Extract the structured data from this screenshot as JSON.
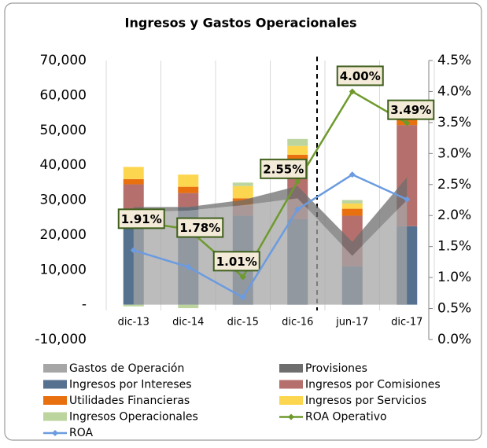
{
  "chart_data": {
    "type": "bar",
    "title": "Ingresos y Gastos Operacionales",
    "categories": [
      "dic-13",
      "dic-14",
      "dic-15",
      "dic-16",
      "jun-17",
      "dic-17"
    ],
    "ylim": [
      -10000,
      70000
    ],
    "yticks": [
      {
        "value": -10000,
        "label": "-10,000"
      },
      {
        "value": 0,
        "label": "-"
      },
      {
        "value": 10000,
        "label": "10,000"
      },
      {
        "value": 20000,
        "label": "20,000"
      },
      {
        "value": 30000,
        "label": "30,000"
      },
      {
        "value": 40000,
        "label": "40,000"
      },
      {
        "value": 50000,
        "label": "50,000"
      },
      {
        "value": 60000,
        "label": "60,000"
      },
      {
        "value": 70000,
        "label": "70,000"
      }
    ],
    "y2lim": [
      0,
      4.5
    ],
    "y2ticks": [
      {
        "value": 0,
        "label": "0.0%"
      },
      {
        "value": 0.5,
        "label": "0.5%"
      },
      {
        "value": 1,
        "label": "1.0%"
      },
      {
        "value": 1.5,
        "label": "1.5%"
      },
      {
        "value": 2,
        "label": "2.0%"
      },
      {
        "value": 2.5,
        "label": "2.5%"
      },
      {
        "value": 3,
        "label": "3.0%"
      },
      {
        "value": 3.5,
        "label": "3.5%"
      },
      {
        "value": 4,
        "label": "4.0%"
      },
      {
        "value": 4.5,
        "label": "4.5%"
      }
    ],
    "series": [
      {
        "name": "Gastos de Operación",
        "type": "area",
        "color": "#a6a6a6",
        "values": [
          26500,
          27000,
          28500,
          30500,
          14000,
          30000
        ]
      },
      {
        "name": "Provisiones",
        "type": "area",
        "color": "#6e6e6e",
        "values": [
          1500,
          1000,
          1500,
          3500,
          4000,
          6500
        ]
      },
      {
        "name": "Ingresos por Intereses",
        "type": "bar",
        "color": "#56708f",
        "values": [
          25000,
          28000,
          25500,
          24500,
          11000,
          22500
        ]
      },
      {
        "name": "Ingresos por Comisiones",
        "type": "bar",
        "color": "#b5706d",
        "values": [
          9500,
          4000,
          3000,
          17000,
          14500,
          29000
        ]
      },
      {
        "name": "Utilidades Financieras",
        "type": "bar",
        "color": "#e8700f",
        "values": [
          1500,
          1800,
          2000,
          1500,
          2000,
          2500
        ]
      },
      {
        "name": "Ingresos por Servicios",
        "type": "bar",
        "color": "#fdd64f",
        "values": [
          3500,
          3500,
          3500,
          2500,
          1500,
          1500
        ]
      },
      {
        "name": "Ingresos Operacionales",
        "type": "bar",
        "color": "#bcd59f",
        "values": [
          -500,
          -1000,
          1000,
          2000,
          1000,
          2000
        ]
      },
      {
        "name": "ROA Operativo",
        "type": "line",
        "axis": "y2",
        "color": "#6e9a2d",
        "values": [
          1.91,
          1.78,
          1.01,
          2.55,
          4.0,
          3.49
        ],
        "value_labels": [
          "1.91%",
          "1.78%",
          "1.01%",
          "2.55%",
          "4.00%",
          "3.49%"
        ]
      },
      {
        "name": "ROA",
        "type": "line",
        "axis": "y2",
        "color": "#6b9be0",
        "values": [
          1.44,
          1.17,
          0.68,
          2.1,
          2.66,
          2.26
        ]
      }
    ]
  }
}
